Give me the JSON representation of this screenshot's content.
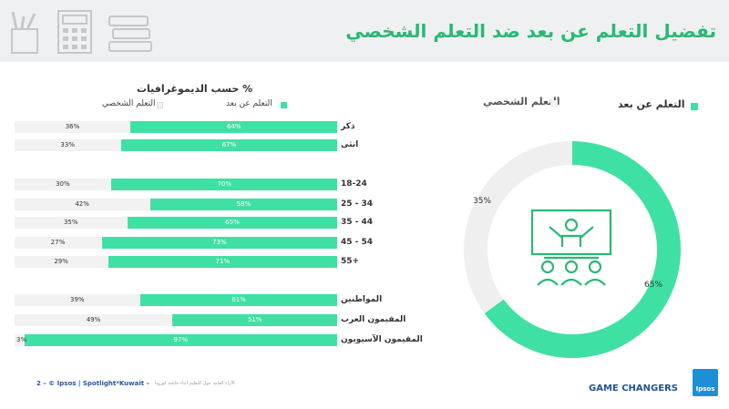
{
  "header": {
    "title": "تفضيل التعلم عن بعد ضد التعلم الشخصي"
  },
  "bar_section": {
    "heading": "% حسب الديموغرافيات",
    "legend_distance": "التعلم عن بعد",
    "legend_inperson": "التعلم الشخصي"
  },
  "donut_section": {
    "legend_distance": "التعلم عن بعد",
    "legend_inperson": "التعلم الشخصي",
    "distance_label": "65%",
    "inperson_label": "35%"
  },
  "footer": {
    "source": "2 – © Ipsos | Spotlight*Kuwait –",
    "note": "الآراء العامة حول التعليم أثناء جائحة كورونا",
    "tagline": "GAME CHANGERS",
    "logo_text": "Ipsos"
  },
  "colors": {
    "distance": "#3fe0a4",
    "inperson": "#f2f2f3",
    "title": "#2bb873",
    "donut_grey": "#efefef"
  },
  "chart_data": [
    {
      "type": "bar",
      "orientation": "horizontal-stacked",
      "categories": [
        "ذكر",
        "انثى",
        "18-24",
        "25 - 34",
        "35 - 44",
        "45 - 54",
        "55+",
        "المواطنين",
        "المقيمون العرب",
        "المقيمون الآسيويون"
      ],
      "series": [
        {
          "name": "التعلم عن بعد",
          "values": [
            64,
            67,
            70,
            58,
            65,
            73,
            71,
            61,
            51,
            97
          ],
          "labels": [
            "64%",
            "67%",
            "70%",
            "58%",
            "65%",
            "73%",
            "71%",
            "61%",
            "51%",
            "97%"
          ]
        },
        {
          "name": "التعلم الشخصي",
          "values": [
            36,
            33,
            30,
            42,
            35,
            27,
            29,
            39,
            49,
            3
          ],
          "labels": [
            "36%",
            "33%",
            "30%",
            "42%",
            "35%",
            "27%",
            "29%",
            "39%",
            "49%",
            "3%"
          ]
        }
      ],
      "title": "% حسب الديموغرافيات",
      "xlim": [
        0,
        100
      ]
    },
    {
      "type": "pie",
      "style": "donut",
      "categories": [
        "التعلم عن بعد",
        "التعلم الشخصي"
      ],
      "values": [
        65,
        35
      ],
      "labels": [
        "65%",
        "35%"
      ],
      "legend": "top"
    }
  ]
}
